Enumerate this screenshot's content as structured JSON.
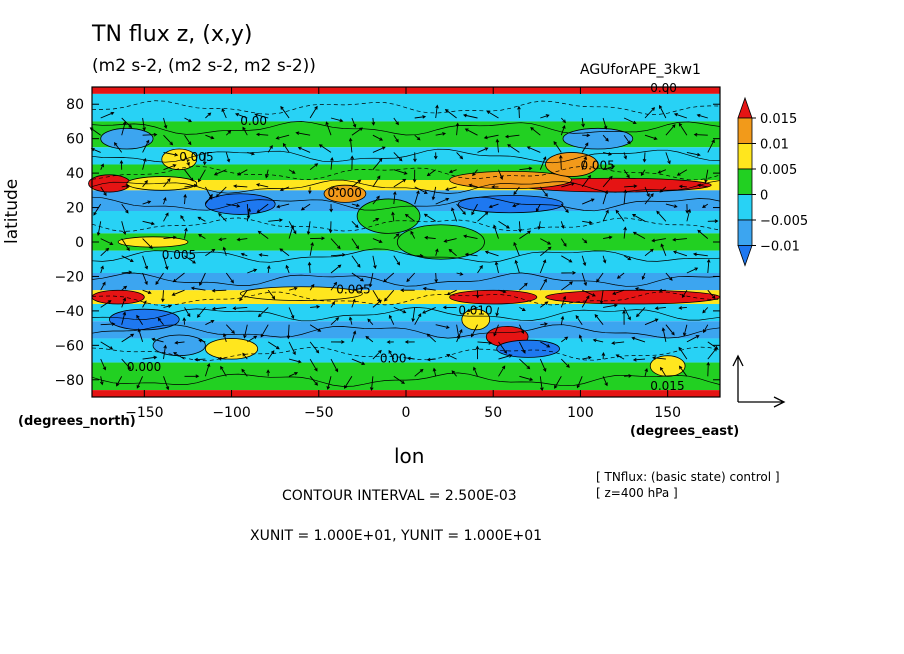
{
  "header": {
    "title": "TN flux z, (x,y)",
    "units": "(m2 s-2, (m2 s-2, m2 s-2))",
    "experiment": "AGUforAPE_3kw1"
  },
  "axes": {
    "ylabel": "latitude",
    "yunit": "(degrees_north)",
    "xlabel": "lon",
    "xunit": "(degrees_east)"
  },
  "info": {
    "line1": "[ TNflux: (basic state) control ]",
    "line2": "[ z=400 hPa ]",
    "contour_interval": "CONTOUR INTERVAL = 2.500E-03",
    "vector_units": "XUNIT = 1.000E+01, YUNIT = 1.000E+01"
  },
  "colors": {
    "dark_blue": "#1e78f0",
    "blue": "#3ca5f0",
    "cyan": "#28d2f5",
    "green": "#22d022",
    "yellow": "#ffe61e",
    "orange": "#f29a1a",
    "red": "#e51414"
  },
  "contour_labels": [
    "0.00",
    "0.005",
    "0.000",
    "0.005",
    "0.005",
    "0.000",
    "0.010",
    "0.00",
    "0.005",
    "0.00",
    "0.015"
  ],
  "chart_data": {
    "type": "heatmap",
    "title": "TN flux z, (x,y)",
    "xlabel": "lon",
    "ylabel": "latitude",
    "xlim": [
      -180,
      180
    ],
    "ylim": [
      -90,
      90
    ],
    "x_ticks": [
      -150,
      -100,
      -50,
      0,
      50,
      100,
      150
    ],
    "y_ticks": [
      -80,
      -60,
      -40,
      -20,
      0,
      20,
      40,
      60,
      80
    ],
    "colorbar": {
      "levels": [
        -0.01,
        -0.005,
        0,
        0.005,
        0.01,
        0.015
      ],
      "tick_labels": [
        "0.015",
        "0.01",
        "0.005",
        "0",
        "−0.005",
        "−0.01"
      ],
      "colors": [
        "#1e78f0",
        "#3ca5f0",
        "#28d2f5",
        "#22d022",
        "#ffe61e",
        "#f29a1a",
        "#e51414"
      ]
    },
    "latitude_bands": [
      {
        "from": 86,
        "to": 90,
        "value": 0.016
      },
      {
        "from": 70,
        "to": 86,
        "value": -0.003
      },
      {
        "from": 55,
        "to": 70,
        "value": 0.001
      },
      {
        "from": 45,
        "to": 55,
        "value": -0.002
      },
      {
        "from": 36,
        "to": 45,
        "value": 0.004
      },
      {
        "from": 30,
        "to": 36,
        "value": 0.008
      },
      {
        "from": 18,
        "to": 30,
        "value": -0.008
      },
      {
        "from": 5,
        "to": 18,
        "value": -0.003
      },
      {
        "from": -5,
        "to": 5,
        "value": 0.001
      },
      {
        "from": -18,
        "to": -5,
        "value": -0.004
      },
      {
        "from": -28,
        "to": -18,
        "value": -0.008
      },
      {
        "from": -36,
        "to": -28,
        "value": 0.008
      },
      {
        "from": -46,
        "to": -36,
        "value": -0.003
      },
      {
        "from": -56,
        "to": -46,
        "value": -0.008
      },
      {
        "from": -70,
        "to": -56,
        "value": -0.003
      },
      {
        "from": -86,
        "to": -70,
        "value": 0.001
      },
      {
        "from": -90,
        "to": -86,
        "value": 0.016
      }
    ],
    "features": [
      {
        "lon": 120,
        "lat": 33,
        "dlon": 55,
        "dlat": 4,
        "value": 0.016
      },
      {
        "lon": 60,
        "lat": 36,
        "dlon": 35,
        "dlat": 5,
        "value": 0.011
      },
      {
        "lon": 95,
        "lat": 45,
        "dlon": 15,
        "dlat": 7,
        "value": 0.011
      },
      {
        "lon": -170,
        "lat": 34,
        "dlon": 12,
        "dlat": 5,
        "value": 0.016
      },
      {
        "lon": -140,
        "lat": 34,
        "dlon": 20,
        "dlat": 4,
        "value": 0.006
      },
      {
        "lon": -35,
        "lat": 28,
        "dlon": 12,
        "dlat": 5,
        "value": 0.011
      },
      {
        "lon": -130,
        "lat": 48,
        "dlon": 10,
        "dlat": 6,
        "value": 0.006
      },
      {
        "lon": -145,
        "lat": 0,
        "dlon": 20,
        "dlat": 3,
        "value": 0.006
      },
      {
        "lon": 130,
        "lat": -32,
        "dlon": 50,
        "dlat": 4,
        "value": 0.016
      },
      {
        "lon": 50,
        "lat": -32,
        "dlon": 25,
        "dlat": 4,
        "value": 0.016
      },
      {
        "lon": -165,
        "lat": -32,
        "dlon": 15,
        "dlat": 4,
        "value": 0.016
      },
      {
        "lon": -60,
        "lat": -30,
        "dlon": 35,
        "dlat": 4,
        "value": 0.006
      },
      {
        "lon": 58,
        "lat": -55,
        "dlon": 12,
        "dlat": 6,
        "value": 0.016
      },
      {
        "lon": 40,
        "lat": -45,
        "dlon": 8,
        "dlat": 6,
        "value": 0.006
      },
      {
        "lon": -100,
        "lat": -62,
        "dlon": 15,
        "dlat": 6,
        "value": 0.006
      },
      {
        "lon": 150,
        "lat": -72,
        "dlon": 10,
        "dlat": 6,
        "value": 0.006
      },
      {
        "lon": -150,
        "lat": -45,
        "dlon": 20,
        "dlat": 6,
        "value": -0.011
      },
      {
        "lon": 70,
        "lat": -62,
        "dlon": 18,
        "dlat": 5,
        "value": -0.011
      },
      {
        "lon": -130,
        "lat": -60,
        "dlon": 15,
        "dlat": 6,
        "value": -0.006
      },
      {
        "lon": 110,
        "lat": 60,
        "dlon": 20,
        "dlat": 6,
        "value": -0.006
      },
      {
        "lon": -160,
        "lat": 60,
        "dlon": 15,
        "dlat": 6,
        "value": -0.006
      },
      {
        "lon": -95,
        "lat": 22,
        "dlon": 20,
        "dlat": 6,
        "value": -0.011
      },
      {
        "lon": 60,
        "lat": 22,
        "dlon": 30,
        "dlat": 5,
        "value": -0.011
      },
      {
        "lon": -10,
        "lat": 15,
        "dlon": 18,
        "dlat": 10,
        "value": 0.001
      },
      {
        "lon": 20,
        "lat": 0,
        "dlon": 25,
        "dlat": 10,
        "value": 0.001
      }
    ]
  }
}
